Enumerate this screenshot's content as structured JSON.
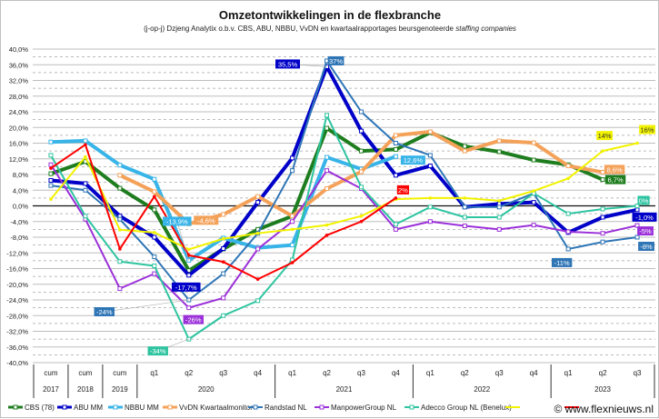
{
  "chart_data": {
    "type": "line",
    "title": "Omzetontwikkelingen in de flexbranche",
    "subtitle": "(j-op-j) Dzjeng Analytix o.b.v. CBS, ABU, NBBU, VvDN en kwartaalrapportages beursgenoteerde",
    "subtitle_italic": "staffing companies",
    "ylim": [
      -40,
      40
    ],
    "ytick_step": 4,
    "grid": true,
    "legend_position": "bottom",
    "categories": [
      "cum",
      "cum",
      "cum",
      "q1",
      "q2",
      "q3",
      "q4",
      "q1",
      "q2",
      "q3",
      "q4",
      "q1",
      "q2",
      "q3",
      "q4",
      "q1",
      "q2",
      "q3"
    ],
    "category_groups": [
      {
        "label": "2017",
        "span": 1
      },
      {
        "label": "2018",
        "span": 1
      },
      {
        "label": "2019",
        "span": 1
      },
      {
        "label": "2020",
        "span": 4
      },
      {
        "label": "2021",
        "span": 4
      },
      {
        "label": "2022",
        "span": 4
      },
      {
        "label": "2023",
        "span": 3
      }
    ],
    "series": [
      {
        "name": "CBS (78)",
        "color": "#1e7d1e",
        "width": 4,
        "markers": true,
        "values": [
          8.2,
          11.3,
          4.5,
          -1,
          -16.5,
          -11,
          -6,
          -2.6,
          19.8,
          14,
          14.4,
          18.7,
          15.2,
          13.8,
          11.7,
          10.5,
          6.7,
          null
        ]
      },
      {
        "name": "ABU MM",
        "color": "#0000c8",
        "width": 4,
        "markers": true,
        "values": [
          6.5,
          5.7,
          -2.6,
          -8,
          -17.7,
          -10.9,
          0.9,
          12.2,
          35.5,
          19.1,
          7.8,
          10.2,
          -0.3,
          0.5,
          0.9,
          -6.8,
          -2.9,
          -1.0
        ]
      },
      {
        "name": "NBBU MM",
        "color": "#38b4e8",
        "width": 4,
        "markers": true,
        "values": [
          16.3,
          16.6,
          10.4,
          6.8,
          -13.9,
          -8.2,
          -10.7,
          -10,
          12.4,
          9.4,
          12.6,
          null,
          null,
          null,
          null,
          null,
          null,
          null
        ]
      },
      {
        "name": "VvDN Kwartaalmonitor",
        "color": "#f4a25a",
        "width": 4,
        "markers": true,
        "values": [
          null,
          null,
          7.8,
          3.6,
          -4.6,
          -2.2,
          2.4,
          -2.6,
          4.4,
          8.7,
          18,
          18.9,
          14,
          16.6,
          16.1,
          10.2,
          8.6,
          null
        ]
      },
      {
        "name": "Randstad NL",
        "color": "#2e75b6",
        "width": 2,
        "markers": true,
        "values": [
          5.2,
          4,
          -3.4,
          -13,
          -24,
          -17.3,
          -7,
          9,
          37,
          24,
          16,
          12.9,
          -0.3,
          -0.3,
          3.2,
          -11,
          -9.2,
          -8
        ]
      },
      {
        "name": "ManpowerGroup NL",
        "color": "#9b30d9",
        "width": 2,
        "markers": true,
        "values": [
          10.5,
          -3.4,
          -21.1,
          -17.3,
          -26,
          -23.5,
          -11,
          -4,
          9,
          4.4,
          -6,
          -4,
          -5.1,
          -6,
          -4.9,
          -6.6,
          -7,
          -5
        ]
      },
      {
        "name": "Adecco Group NL (Benelux)",
        "color": "#2ec4a0",
        "width": 2,
        "markers": true,
        "values": [
          12.9,
          -2.6,
          -14.2,
          -15.3,
          -34,
          -28,
          -24.2,
          -13.8,
          23.1,
          4.8,
          -4.7,
          -0.3,
          -2.9,
          -2.9,
          3.2,
          -2,
          -0.8,
          0
        ]
      },
      {
        "color": "#f2f200",
        "width": 2,
        "markers": false,
        "values": [
          1.7,
          12.5,
          -6.1,
          -6.8,
          -11.1,
          -8.4,
          -7,
          -6,
          -4.9,
          -2.6,
          1.7,
          2,
          2,
          1.3,
          3.8,
          7,
          14,
          16
        ]
      },
      {
        "color": "#ff0000",
        "width": 2,
        "markers": false,
        "values": [
          9.6,
          15.6,
          -11,
          2.4,
          -12.6,
          -14.3,
          -18.7,
          -14.5,
          -7.5,
          -4,
          2,
          null,
          null,
          null,
          null,
          null,
          null,
          null
        ]
      }
    ],
    "data_labels": [
      {
        "series": 2,
        "point": 4,
        "text": "-13,9%"
      },
      {
        "series": 3,
        "point": 4,
        "text": "-4,6%"
      },
      {
        "series": 1,
        "point": 4,
        "text": "-17,7%"
      },
      {
        "series": 4,
        "point": 4,
        "text": "-24%"
      },
      {
        "series": 5,
        "point": 4,
        "text": "-26%"
      },
      {
        "series": 6,
        "point": 4,
        "text": "-34%"
      },
      {
        "series": 1,
        "point": 8,
        "text": "35,5%"
      },
      {
        "series": 4,
        "point": 8,
        "text": "37%"
      },
      {
        "series": 2,
        "point": 10,
        "text": "12,6%"
      },
      {
        "series": 8,
        "point": 10,
        "text": "2%"
      },
      {
        "series": 7,
        "point": 16,
        "text": "14%"
      },
      {
        "series": 7,
        "point": 17,
        "text": "16%"
      },
      {
        "series": 3,
        "point": 16,
        "text": "8,6%"
      },
      {
        "series": 0,
        "point": 16,
        "text": "6,7%"
      },
      {
        "series": 6,
        "point": 17,
        "text": "0%"
      },
      {
        "series": 1,
        "point": 17,
        "text": "-1,0%"
      },
      {
        "series": 5,
        "point": 17,
        "text": "-5%"
      },
      {
        "series": 4,
        "point": 17,
        "text": "-8%"
      },
      {
        "series": 4,
        "point": 15,
        "text": "-11%"
      }
    ]
  },
  "watermark": "© www.flexnieuws.nl"
}
